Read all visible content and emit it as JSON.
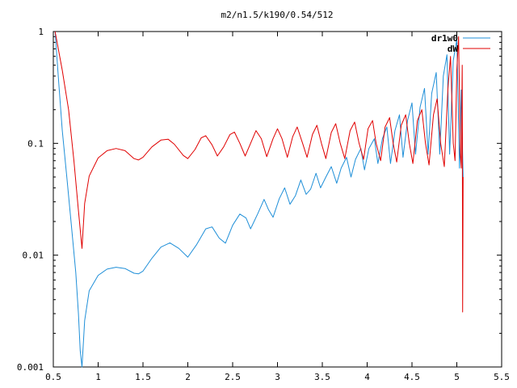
{
  "chart_data": {
    "type": "line",
    "title": "m2/n1.5/k190/0.54/512",
    "xlabel": "",
    "ylabel": "",
    "xlim": [
      0.5,
      5.5
    ],
    "ylim": [
      0.001,
      1
    ],
    "yscale": "log",
    "grid": false,
    "legend_position": "top-right",
    "x_ticks": [
      "0.5",
      "1",
      "1.5",
      "2",
      "2.5",
      "3",
      "3.5",
      "4",
      "4.5",
      "5",
      "5.5"
    ],
    "y_ticks": [
      "0.001",
      "0.01",
      "0.1",
      "1"
    ],
    "series": [
      {
        "name": "dr1w0",
        "color": "#1f8fd8",
        "points": [
          [
            0.52,
            1.0
          ],
          [
            0.56,
            0.35
          ],
          [
            0.6,
            0.13
          ],
          [
            0.65,
            0.05
          ],
          [
            0.7,
            0.019
          ],
          [
            0.75,
            0.007
          ],
          [
            0.78,
            0.003
          ],
          [
            0.8,
            0.0014
          ],
          [
            0.82,
            0.001
          ],
          [
            0.85,
            0.0026
          ],
          [
            0.9,
            0.0048
          ],
          [
            1.0,
            0.0066
          ],
          [
            1.1,
            0.0075
          ],
          [
            1.2,
            0.0078
          ],
          [
            1.3,
            0.0076
          ],
          [
            1.4,
            0.0069
          ],
          [
            1.45,
            0.0068
          ],
          [
            1.5,
            0.0072
          ],
          [
            1.6,
            0.0094
          ],
          [
            1.7,
            0.0118
          ],
          [
            1.8,
            0.0129
          ],
          [
            1.9,
            0.0115
          ],
          [
            2.0,
            0.0096
          ],
          [
            2.1,
            0.0125
          ],
          [
            2.2,
            0.0172
          ],
          [
            2.27,
            0.0179
          ],
          [
            2.35,
            0.0142
          ],
          [
            2.42,
            0.0128
          ],
          [
            2.5,
            0.0185
          ],
          [
            2.58,
            0.0233
          ],
          [
            2.65,
            0.0215
          ],
          [
            2.7,
            0.0172
          ],
          [
            2.78,
            0.0235
          ],
          [
            2.85,
            0.0315
          ],
          [
            2.9,
            0.0255
          ],
          [
            2.95,
            0.0218
          ],
          [
            3.02,
            0.032
          ],
          [
            3.08,
            0.04
          ],
          [
            3.14,
            0.0285
          ],
          [
            3.2,
            0.034
          ],
          [
            3.26,
            0.047
          ],
          [
            3.32,
            0.035
          ],
          [
            3.37,
            0.039
          ],
          [
            3.43,
            0.054
          ],
          [
            3.48,
            0.04
          ],
          [
            3.54,
            0.05
          ],
          [
            3.6,
            0.062
          ],
          [
            3.66,
            0.044
          ],
          [
            3.71,
            0.06
          ],
          [
            3.77,
            0.075
          ],
          [
            3.82,
            0.05
          ],
          [
            3.87,
            0.072
          ],
          [
            3.93,
            0.09
          ],
          [
            3.97,
            0.058
          ],
          [
            4.02,
            0.09
          ],
          [
            4.08,
            0.11
          ],
          [
            4.12,
            0.066
          ],
          [
            4.17,
            0.11
          ],
          [
            4.22,
            0.14
          ],
          [
            4.26,
            0.066
          ],
          [
            4.31,
            0.13
          ],
          [
            4.36,
            0.18
          ],
          [
            4.4,
            0.075
          ],
          [
            4.45,
            0.16
          ],
          [
            4.5,
            0.23
          ],
          [
            4.54,
            0.08
          ],
          [
            4.59,
            0.21
          ],
          [
            4.64,
            0.31
          ],
          [
            4.68,
            0.08
          ],
          [
            4.72,
            0.28
          ],
          [
            4.77,
            0.43
          ],
          [
            4.81,
            0.08
          ],
          [
            4.85,
            0.4
          ],
          [
            4.89,
            0.62
          ],
          [
            4.92,
            0.08
          ],
          [
            4.96,
            0.55
          ],
          [
            5.0,
            0.85
          ],
          [
            5.03,
            0.06
          ],
          [
            5.05,
            0.3
          ],
          [
            5.07,
            0.05
          ]
        ]
      },
      {
        "name": "dW",
        "color": "#e00000",
        "points": [
          [
            0.52,
            1.0
          ],
          [
            0.6,
            0.45
          ],
          [
            0.67,
            0.2
          ],
          [
            0.73,
            0.07
          ],
          [
            0.78,
            0.025
          ],
          [
            0.82,
            0.0115
          ],
          [
            0.85,
            0.029
          ],
          [
            0.9,
            0.051
          ],
          [
            1.0,
            0.074
          ],
          [
            1.1,
            0.086
          ],
          [
            1.2,
            0.09
          ],
          [
            1.3,
            0.086
          ],
          [
            1.4,
            0.073
          ],
          [
            1.45,
            0.071
          ],
          [
            1.5,
            0.075
          ],
          [
            1.6,
            0.093
          ],
          [
            1.7,
            0.107
          ],
          [
            1.78,
            0.109
          ],
          [
            1.85,
            0.098
          ],
          [
            1.95,
            0.078
          ],
          [
            2.0,
            0.073
          ],
          [
            2.08,
            0.088
          ],
          [
            2.15,
            0.112
          ],
          [
            2.2,
            0.117
          ],
          [
            2.27,
            0.097
          ],
          [
            2.33,
            0.077
          ],
          [
            2.4,
            0.093
          ],
          [
            2.47,
            0.12
          ],
          [
            2.52,
            0.126
          ],
          [
            2.58,
            0.1
          ],
          [
            2.64,
            0.077
          ],
          [
            2.7,
            0.1
          ],
          [
            2.76,
            0.13
          ],
          [
            2.82,
            0.11
          ],
          [
            2.88,
            0.076
          ],
          [
            2.95,
            0.11
          ],
          [
            3.0,
            0.135
          ],
          [
            3.05,
            0.11
          ],
          [
            3.11,
            0.075
          ],
          [
            3.17,
            0.115
          ],
          [
            3.22,
            0.14
          ],
          [
            3.28,
            0.1
          ],
          [
            3.33,
            0.075
          ],
          [
            3.39,
            0.12
          ],
          [
            3.44,
            0.145
          ],
          [
            3.49,
            0.1
          ],
          [
            3.54,
            0.073
          ],
          [
            3.6,
            0.125
          ],
          [
            3.65,
            0.15
          ],
          [
            3.7,
            0.1
          ],
          [
            3.75,
            0.073
          ],
          [
            3.81,
            0.13
          ],
          [
            3.86,
            0.155
          ],
          [
            3.91,
            0.1
          ],
          [
            3.96,
            0.072
          ],
          [
            4.01,
            0.135
          ],
          [
            4.06,
            0.16
          ],
          [
            4.1,
            0.1
          ],
          [
            4.15,
            0.07
          ],
          [
            4.2,
            0.14
          ],
          [
            4.25,
            0.17
          ],
          [
            4.29,
            0.1
          ],
          [
            4.33,
            0.068
          ],
          [
            4.38,
            0.145
          ],
          [
            4.43,
            0.18
          ],
          [
            4.47,
            0.1
          ],
          [
            4.51,
            0.066
          ],
          [
            4.56,
            0.16
          ],
          [
            4.61,
            0.2
          ],
          [
            4.65,
            0.1
          ],
          [
            4.69,
            0.064
          ],
          [
            4.74,
            0.18
          ],
          [
            4.78,
            0.25
          ],
          [
            4.82,
            0.1
          ],
          [
            4.86,
            0.062
          ],
          [
            4.9,
            0.3
          ],
          [
            4.93,
            0.6
          ],
          [
            4.96,
            0.1
          ],
          [
            4.98,
            0.07
          ],
          [
            5.0,
            0.45
          ],
          [
            5.02,
            0.9
          ],
          [
            5.04,
            0.08
          ],
          [
            5.05,
            0.06
          ],
          [
            5.06,
            0.5
          ],
          [
            5.065,
            0.0031
          ],
          [
            5.07,
            0.05
          ]
        ]
      }
    ]
  }
}
